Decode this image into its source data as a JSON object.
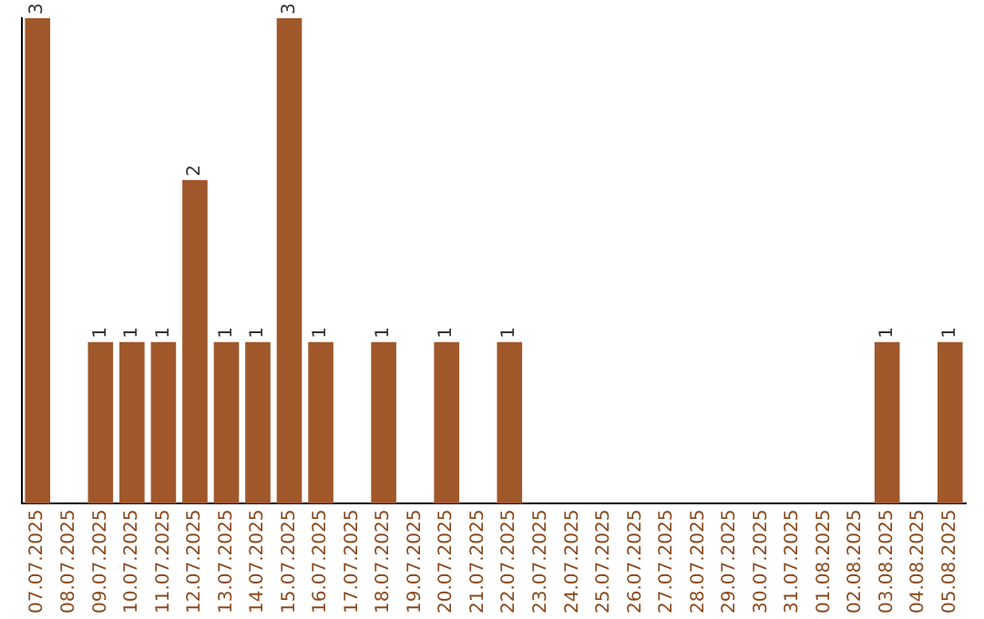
{
  "chart_data": {
    "type": "bar",
    "categories": [
      "07.07.2025",
      "08.07.2025",
      "09.07.2025",
      "10.07.2025",
      "11.07.2025",
      "12.07.2025",
      "13.07.2025",
      "14.07.2025",
      "15.07.2025",
      "16.07.2025",
      "17.07.2025",
      "18.07.2025",
      "19.07.2025",
      "20.07.2025",
      "21.07.2025",
      "22.07.2025",
      "23.07.2025",
      "24.07.2025",
      "25.07.2025",
      "26.07.2025",
      "27.07.2025",
      "28.07.2025",
      "29.07.2025",
      "30.07.2025",
      "31.07.2025",
      "01.08.2025",
      "02.08.2025",
      "03.08.2025",
      "04.08.2025",
      "05.08.2025"
    ],
    "values": [
      3,
      0,
      1,
      1,
      1,
      2,
      1,
      1,
      3,
      1,
      0,
      1,
      0,
      1,
      0,
      1,
      0,
      0,
      0,
      0,
      0,
      0,
      0,
      0,
      0,
      0,
      0,
      1,
      0,
      1
    ],
    "value_labels": [
      "3",
      null,
      "1",
      "1",
      "1",
      "2",
      "1",
      "1",
      "3",
      "1",
      null,
      "1",
      null,
      "1",
      null,
      "1",
      null,
      null,
      null,
      null,
      null,
      null,
      null,
      null,
      null,
      null,
      null,
      "1",
      null,
      "1"
    ],
    "color": "#a0582b",
    "ylim": [
      0,
      3
    ],
    "tick_labels": "x",
    "grid": false,
    "legend": false
  }
}
